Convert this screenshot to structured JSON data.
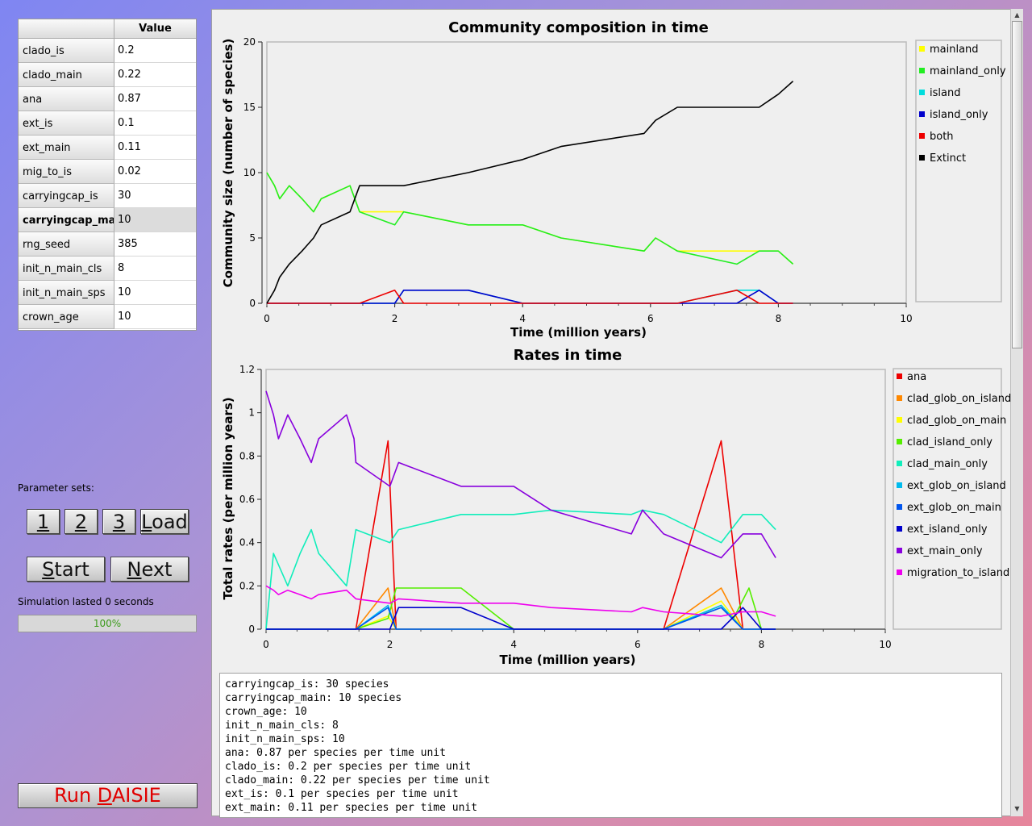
{
  "param_table": {
    "header_value": "Value",
    "rows": [
      {
        "name": "clado_is",
        "value": "0.2"
      },
      {
        "name": "clado_main",
        "value": "0.22"
      },
      {
        "name": "ana",
        "value": "0.87"
      },
      {
        "name": "ext_is",
        "value": "0.1"
      },
      {
        "name": "ext_main",
        "value": "0.11"
      },
      {
        "name": "mig_to_is",
        "value": "0.02"
      },
      {
        "name": "carryingcap_is",
        "value": "30"
      },
      {
        "name": "carryingcap_main",
        "value": "10"
      },
      {
        "name": "rng_seed",
        "value": "385"
      },
      {
        "name": "init_n_main_cls",
        "value": "8"
      },
      {
        "name": "init_n_main_sps",
        "value": "10"
      },
      {
        "name": "crown_age",
        "value": "10"
      }
    ],
    "selected_row": "carryingcap_main"
  },
  "controls": {
    "parameter_sets_label": "Parameter sets:",
    "set_buttons": [
      "1",
      "2",
      "3"
    ],
    "load_label": "Load",
    "start_label": "Start",
    "next_label": "Next",
    "status_text": "Simulation lasted 0 seconds",
    "progress_text": "100%",
    "progress_value": 1.0,
    "run_label": "Run DAISIE"
  },
  "chart_data": [
    {
      "type": "line",
      "title": "Community composition in time",
      "xlabel": "Time (million years)",
      "ylabel": "Community size (number of species)",
      "xlim": [
        0,
        10
      ],
      "ylim": [
        0,
        20
      ],
      "xticks": [
        0,
        2,
        4,
        6,
        8,
        10
      ],
      "yticks": [
        0,
        5,
        10,
        15,
        20
      ],
      "legend_position": "right",
      "series": [
        {
          "name": "mainland",
          "color": "#ffff00",
          "points": [
            [
              0,
              10
            ],
            [
              0.12,
              9
            ],
            [
              0.2,
              8
            ],
            [
              0.35,
              9
            ],
            [
              0.55,
              8
            ],
            [
              0.73,
              7
            ],
            [
              0.85,
              8
            ],
            [
              1.3,
              9
            ],
            [
              1.45,
              7
            ],
            [
              2.0,
              7
            ],
            [
              2.14,
              7
            ],
            [
              3.15,
              6
            ],
            [
              4.0,
              6
            ],
            [
              4.6,
              5
            ],
            [
              5.9,
              4
            ],
            [
              6.08,
              5
            ],
            [
              6.42,
              4
            ],
            [
              7.7,
              4
            ],
            [
              8.0,
              4
            ],
            [
              8.23,
              3
            ]
          ]
        },
        {
          "name": "mainland_only",
          "color": "#22ee22",
          "points": [
            [
              0,
              10
            ],
            [
              0.12,
              9
            ],
            [
              0.2,
              8
            ],
            [
              0.35,
              9
            ],
            [
              0.55,
              8
            ],
            [
              0.73,
              7
            ],
            [
              0.85,
              8
            ],
            [
              1.3,
              9
            ],
            [
              1.45,
              7
            ],
            [
              2.0,
              6
            ],
            [
              2.14,
              7
            ],
            [
              3.15,
              6
            ],
            [
              4.0,
              6
            ],
            [
              4.6,
              5
            ],
            [
              5.9,
              4
            ],
            [
              6.08,
              5
            ],
            [
              6.42,
              4
            ],
            [
              7.35,
              3
            ],
            [
              7.7,
              4
            ],
            [
              8.0,
              4
            ],
            [
              8.23,
              3
            ]
          ]
        },
        {
          "name": "island",
          "color": "#00dddd",
          "points": [
            [
              0,
              0
            ],
            [
              1.45,
              0
            ],
            [
              2.0,
              0
            ],
            [
              2.14,
              1
            ],
            [
              3.15,
              1
            ],
            [
              4.0,
              0
            ],
            [
              6.42,
              0
            ],
            [
              7.35,
              1
            ],
            [
              7.7,
              1
            ],
            [
              8.0,
              0
            ],
            [
              8.23,
              0
            ]
          ]
        },
        {
          "name": "island_only",
          "color": "#0000cc",
          "points": [
            [
              0,
              0
            ],
            [
              1.45,
              0
            ],
            [
              2.0,
              0
            ],
            [
              2.14,
              1
            ],
            [
              3.15,
              1
            ],
            [
              4.0,
              0
            ],
            [
              7.35,
              0
            ],
            [
              7.7,
              1
            ],
            [
              8.0,
              0
            ],
            [
              8.23,
              0
            ]
          ]
        },
        {
          "name": "both",
          "color": "#ee0000",
          "points": [
            [
              0,
              0
            ],
            [
              1.45,
              0
            ],
            [
              2.0,
              1
            ],
            [
              2.14,
              0
            ],
            [
              6.42,
              0
            ],
            [
              7.35,
              1
            ],
            [
              7.7,
              0
            ],
            [
              8.23,
              0
            ]
          ]
        },
        {
          "name": "Extinct",
          "color": "#000000",
          "points": [
            [
              0,
              0
            ],
            [
              0.12,
              1
            ],
            [
              0.2,
              2
            ],
            [
              0.35,
              3
            ],
            [
              0.55,
              4
            ],
            [
              0.73,
              5
            ],
            [
              0.85,
              6
            ],
            [
              1.3,
              7
            ],
            [
              1.45,
              9
            ],
            [
              2.14,
              9
            ],
            [
              3.15,
              10
            ],
            [
              4.0,
              11
            ],
            [
              4.6,
              12
            ],
            [
              5.9,
              13
            ],
            [
              6.08,
              14
            ],
            [
              6.42,
              15
            ],
            [
              7.7,
              15
            ],
            [
              8.0,
              16
            ],
            [
              8.23,
              17
            ]
          ]
        }
      ]
    },
    {
      "type": "line",
      "title": "Rates in time",
      "xlabel": "Time (million years)",
      "ylabel": "Total rates (per million years)",
      "xlim": [
        0,
        10
      ],
      "ylim": [
        0,
        1.2
      ],
      "xticks": [
        0,
        2,
        4,
        6,
        8,
        10
      ],
      "yticks": [
        0,
        0.2,
        0.4,
        0.6,
        0.8,
        1,
        1.2
      ],
      "legend_position": "right",
      "series": [
        {
          "name": "ana",
          "color": "#ee0000",
          "points": [
            [
              0,
              0
            ],
            [
              1.45,
              0
            ],
            [
              1.97,
              0.87
            ],
            [
              2.1,
              0
            ],
            [
              6.42,
              0
            ],
            [
              7.35,
              0.87
            ],
            [
              7.7,
              0
            ],
            [
              8.23,
              0
            ]
          ]
        },
        {
          "name": "clad_glob_on_island",
          "color": "#ff8800",
          "points": [
            [
              0,
              0
            ],
            [
              1.45,
              0
            ],
            [
              1.97,
              0.19
            ],
            [
              2.1,
              0
            ],
            [
              6.42,
              0
            ],
            [
              7.35,
              0.19
            ],
            [
              7.7,
              0
            ],
            [
              8.23,
              0
            ]
          ]
        },
        {
          "name": "clad_glob_on_main",
          "color": "#ffff00",
          "points": [
            [
              0,
              0
            ],
            [
              1.45,
              0
            ],
            [
              1.97,
              0.06
            ],
            [
              2.1,
              0
            ],
            [
              6.42,
              0
            ],
            [
              7.35,
              0.13
            ],
            [
              7.7,
              0
            ],
            [
              8.23,
              0
            ]
          ]
        },
        {
          "name": "clad_island_only",
          "color": "#55ee00",
          "points": [
            [
              0,
              0
            ],
            [
              1.45,
              0
            ],
            [
              1.97,
              0.05
            ],
            [
              2.1,
              0.19
            ],
            [
              3.15,
              0.19
            ],
            [
              4.0,
              0
            ],
            [
              6.42,
              0
            ],
            [
              7.35,
              0.11
            ],
            [
              7.55,
              0.05
            ],
            [
              7.8,
              0.19
            ],
            [
              8.0,
              0
            ],
            [
              8.23,
              0
            ]
          ]
        },
        {
          "name": "clad_main_only",
          "color": "#11eebb",
          "points": [
            [
              0,
              0
            ],
            [
              0.12,
              0.35
            ],
            [
              0.35,
              0.2
            ],
            [
              0.55,
              0.35
            ],
            [
              0.73,
              0.46
            ],
            [
              0.85,
              0.35
            ],
            [
              1.3,
              0.2
            ],
            [
              1.45,
              0.46
            ],
            [
              2.0,
              0.4
            ],
            [
              2.14,
              0.46
            ],
            [
              3.15,
              0.53
            ],
            [
              4.0,
              0.53
            ],
            [
              4.6,
              0.55
            ],
            [
              5.9,
              0.53
            ],
            [
              6.08,
              0.55
            ],
            [
              6.42,
              0.53
            ],
            [
              7.35,
              0.4
            ],
            [
              7.7,
              0.53
            ],
            [
              8.0,
              0.53
            ],
            [
              8.23,
              0.46
            ]
          ]
        },
        {
          "name": "ext_glob_on_island",
          "color": "#00bbee",
          "points": [
            [
              0,
              0
            ],
            [
              1.45,
              0
            ],
            [
              1.97,
              0.11
            ],
            [
              2.1,
              0
            ],
            [
              6.42,
              0
            ],
            [
              7.35,
              0.11
            ],
            [
              7.7,
              0
            ],
            [
              8.23,
              0
            ]
          ]
        },
        {
          "name": "ext_glob_on_main",
          "color": "#0055ee",
          "points": [
            [
              0,
              0
            ],
            [
              1.45,
              0
            ],
            [
              1.97,
              0.1
            ],
            [
              2.1,
              0
            ],
            [
              6.42,
              0
            ],
            [
              7.35,
              0.1
            ],
            [
              7.7,
              0
            ],
            [
              8.23,
              0
            ]
          ]
        },
        {
          "name": "ext_island_only",
          "color": "#0000cc",
          "points": [
            [
              0,
              0
            ],
            [
              1.45,
              0
            ],
            [
              2.0,
              0
            ],
            [
              2.14,
              0.1
            ],
            [
              3.15,
              0.1
            ],
            [
              4.0,
              0
            ],
            [
              7.35,
              0
            ],
            [
              7.7,
              0.1
            ],
            [
              8.0,
              0
            ],
            [
              8.23,
              0
            ]
          ]
        },
        {
          "name": "ext_main_only",
          "color": "#8800dd",
          "points": [
            [
              0,
              1.1
            ],
            [
              0.12,
              0.99
            ],
            [
              0.2,
              0.88
            ],
            [
              0.35,
              0.99
            ],
            [
              0.55,
              0.88
            ],
            [
              0.73,
              0.77
            ],
            [
              0.85,
              0.88
            ],
            [
              1.3,
              0.99
            ],
            [
              1.42,
              0.88
            ],
            [
              1.45,
              0.77
            ],
            [
              2.0,
              0.66
            ],
            [
              2.14,
              0.77
            ],
            [
              3.15,
              0.66
            ],
            [
              4.0,
              0.66
            ],
            [
              4.6,
              0.55
            ],
            [
              5.9,
              0.44
            ],
            [
              6.08,
              0.55
            ],
            [
              6.42,
              0.44
            ],
            [
              7.35,
              0.33
            ],
            [
              7.7,
              0.44
            ],
            [
              8.0,
              0.44
            ],
            [
              8.23,
              0.33
            ]
          ]
        },
        {
          "name": "migration_to_island",
          "color": "#ee00ee",
          "points": [
            [
              0,
              0.2
            ],
            [
              0.12,
              0.18
            ],
            [
              0.2,
              0.16
            ],
            [
              0.35,
              0.18
            ],
            [
              0.55,
              0.16
            ],
            [
              0.73,
              0.14
            ],
            [
              0.85,
              0.16
            ],
            [
              1.3,
              0.18
            ],
            [
              1.45,
              0.14
            ],
            [
              2.0,
              0.12
            ],
            [
              2.14,
              0.14
            ],
            [
              3.15,
              0.12
            ],
            [
              4.0,
              0.12
            ],
            [
              4.6,
              0.1
            ],
            [
              5.9,
              0.08
            ],
            [
              6.08,
              0.1
            ],
            [
              6.42,
              0.08
            ],
            [
              7.35,
              0.06
            ],
            [
              7.7,
              0.08
            ],
            [
              8.0,
              0.08
            ],
            [
              8.23,
              0.06
            ]
          ]
        }
      ]
    }
  ],
  "summary_lines": [
    "carryingcap_is: 30 species",
    "carryingcap_main: 10 species",
    "crown_age: 10",
    "init_n_main_cls: 8",
    "init_n_main_sps: 10",
    "ana: 0.87 per species per time unit",
    "clado_is: 0.2 per species per time unit",
    "clado_main: 0.22 per species per time unit",
    "ext_is: 0.1 per species per time unit",
    "ext_main: 0.11 per species per time unit"
  ]
}
